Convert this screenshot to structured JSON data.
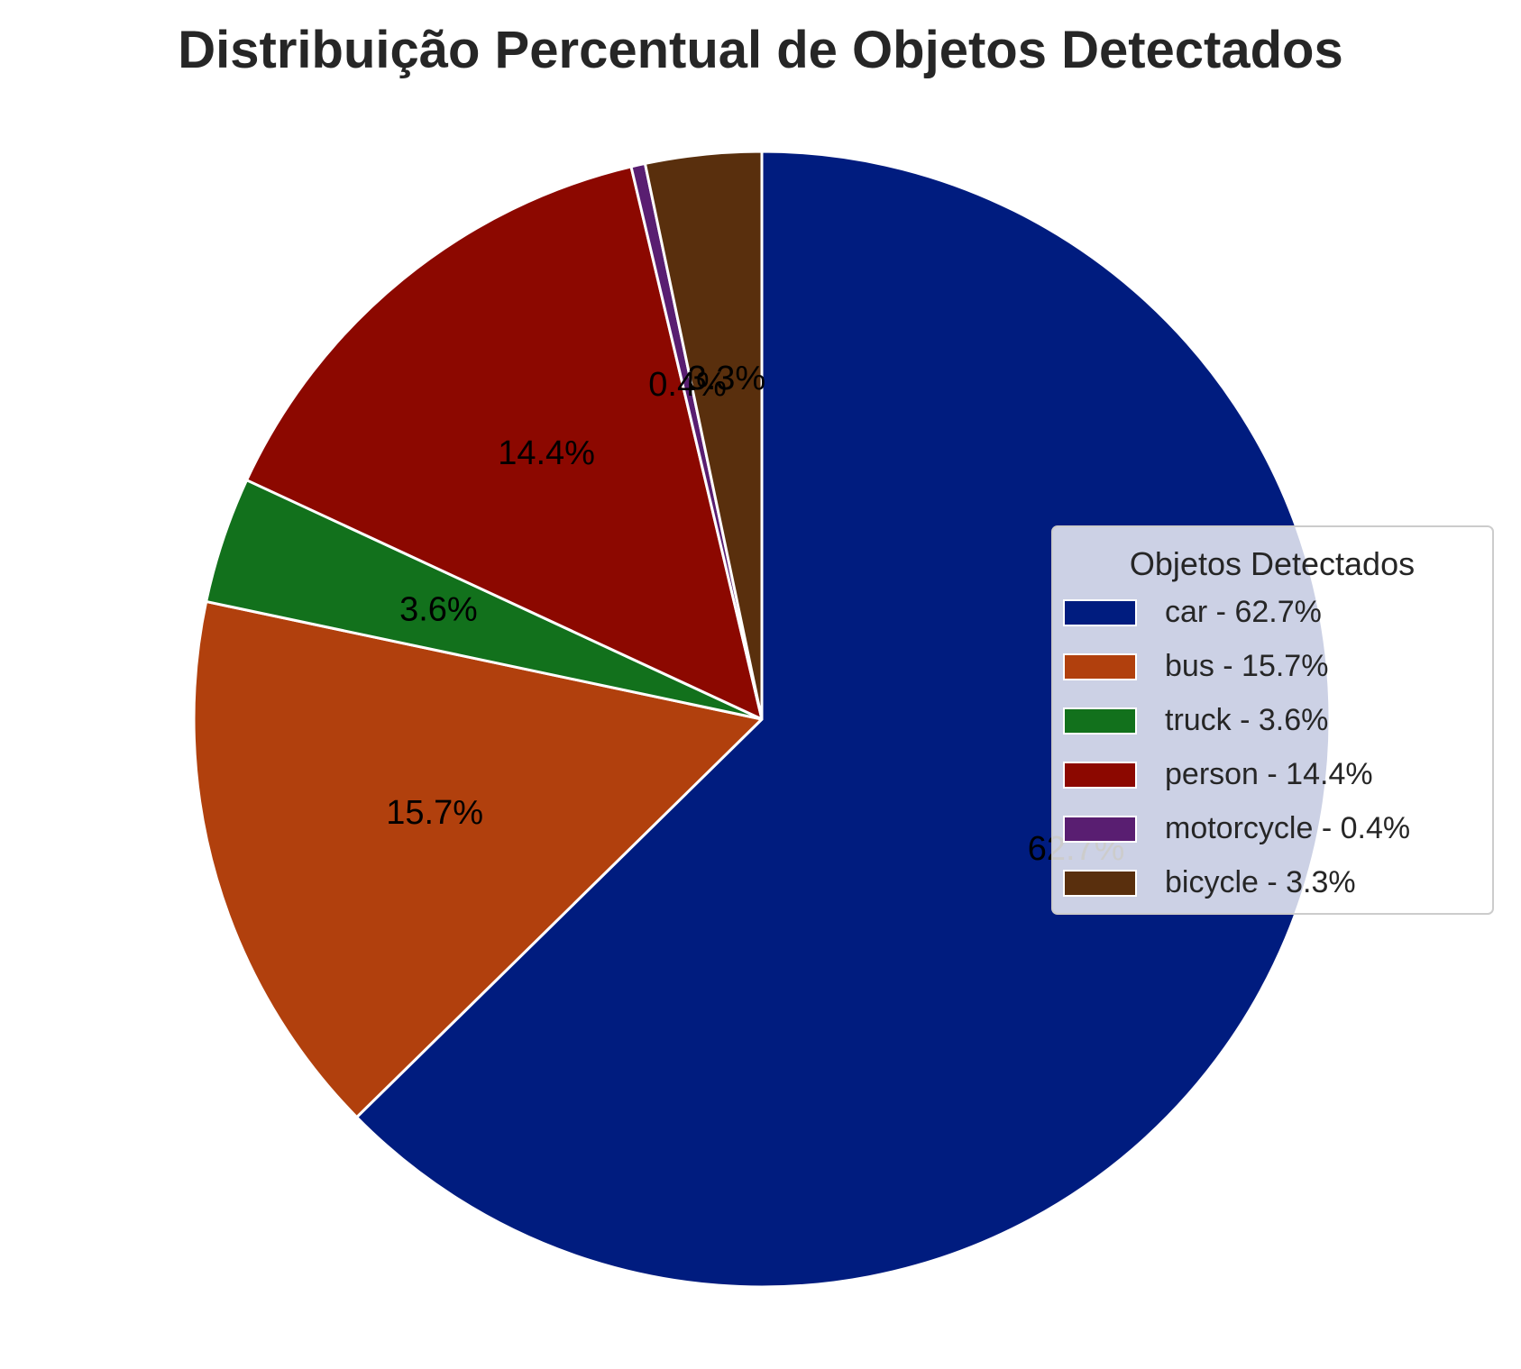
{
  "chart_data": {
    "type": "pie",
    "title": "Distribuição Percentual de Objetos Detectados",
    "categories": [
      "car",
      "bus",
      "truck",
      "person",
      "motorcycle",
      "bicycle"
    ],
    "values": [
      62.7,
      15.7,
      3.6,
      14.4,
      0.4,
      3.3
    ],
    "labels": [
      "62.7%",
      "15.7%",
      "3.6%",
      "14.4%",
      "0.4%",
      "3.3%"
    ],
    "colors": [
      "#001c7f",
      "#b1400d",
      "#12711c",
      "#8c0800",
      "#591e71",
      "#592f0d"
    ],
    "start_angle_deg": 90,
    "direction": "clockwise",
    "legend": {
      "title": "Objetos Detectados",
      "placement": "right",
      "entries": [
        "car - 62.7%",
        "bus - 15.7%",
        "truck - 3.6%",
        "person - 14.4%",
        "motorcycle - 0.4%",
        "bicycle - 3.3%"
      ]
    }
  }
}
